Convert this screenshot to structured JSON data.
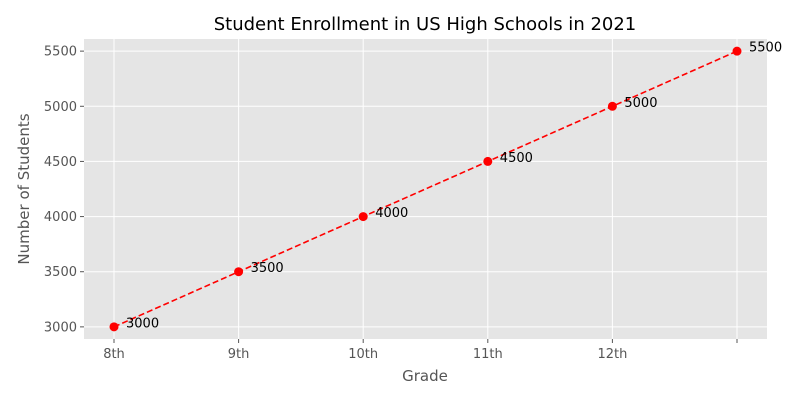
{
  "chart_data": {
    "type": "line",
    "title": "Student Enrollment in US High Schools in 2021",
    "xlabel": "Grade",
    "ylabel": "Number of Students",
    "x_tick_labels": [
      "8th",
      "9th",
      "10th",
      "11th",
      "12th",
      ""
    ],
    "series": [
      {
        "values": [
          3000,
          3500,
          4000,
          4500,
          5000,
          5500
        ],
        "data_labels": [
          "3000",
          "3500",
          "4000",
          "4500",
          "5000",
          "5500"
        ],
        "color": "#ff0000",
        "line_style": "dashed",
        "marker": "circle"
      }
    ],
    "y_ticks": [
      3000,
      3500,
      4000,
      4500,
      5000,
      5500
    ],
    "y_tick_labels": [
      "3000",
      "3500",
      "4000",
      "4500",
      "5000",
      "5500"
    ],
    "ylim": [
      2890,
      5610
    ],
    "grid": true,
    "background": "#e5e5e5",
    "grid_color": "#ffffff"
  }
}
